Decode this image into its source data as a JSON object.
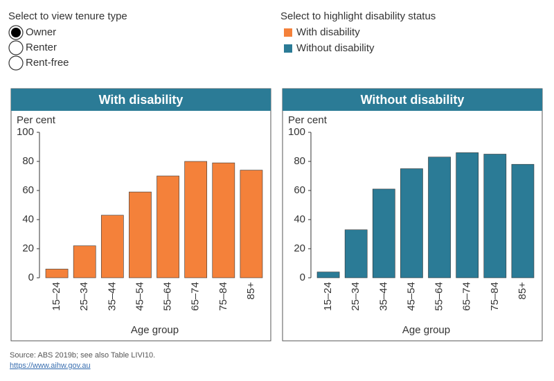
{
  "controls": {
    "tenure": {
      "title": "Select to view tenure type",
      "options": [
        "Owner",
        "Renter",
        "Rent-free"
      ],
      "selected": 0
    },
    "highlight": {
      "title": "Select to highlight disability status",
      "options": [
        {
          "name": "With disability",
          "color": "#f4813a"
        },
        {
          "name": "Without disability",
          "color": "#2b7b96"
        }
      ]
    }
  },
  "chart_data": [
    {
      "type": "bar",
      "title": "With disability",
      "y_label": "Per cent",
      "x_label": "Age group",
      "categories": [
        "15–24",
        "25–34",
        "35–44",
        "45–54",
        "55–64",
        "65–74",
        "75–84",
        "85+"
      ],
      "values": [
        6,
        22,
        43,
        59,
        70,
        80,
        79,
        74
      ],
      "color": "#f4813a",
      "ylim": [
        0,
        100
      ],
      "yticks": [
        0,
        20,
        40,
        60,
        80,
        100
      ]
    },
    {
      "type": "bar",
      "title": "Without disability",
      "y_label": "Per cent",
      "x_label": "Age group",
      "categories": [
        "15–24",
        "25–34",
        "35–44",
        "45–54",
        "55–64",
        "65–74",
        "75–84",
        "85+"
      ],
      "values": [
        4,
        33,
        61,
        75,
        83,
        86,
        85,
        78
      ],
      "color": "#2b7b96",
      "ylim": [
        0,
        100
      ],
      "yticks": [
        0,
        20,
        40,
        60,
        80,
        100
      ]
    }
  ],
  "footer": {
    "source": "Source: ABS 2019b; see also Table LIVI10.",
    "link": "https://www.aihw.gov.au"
  }
}
